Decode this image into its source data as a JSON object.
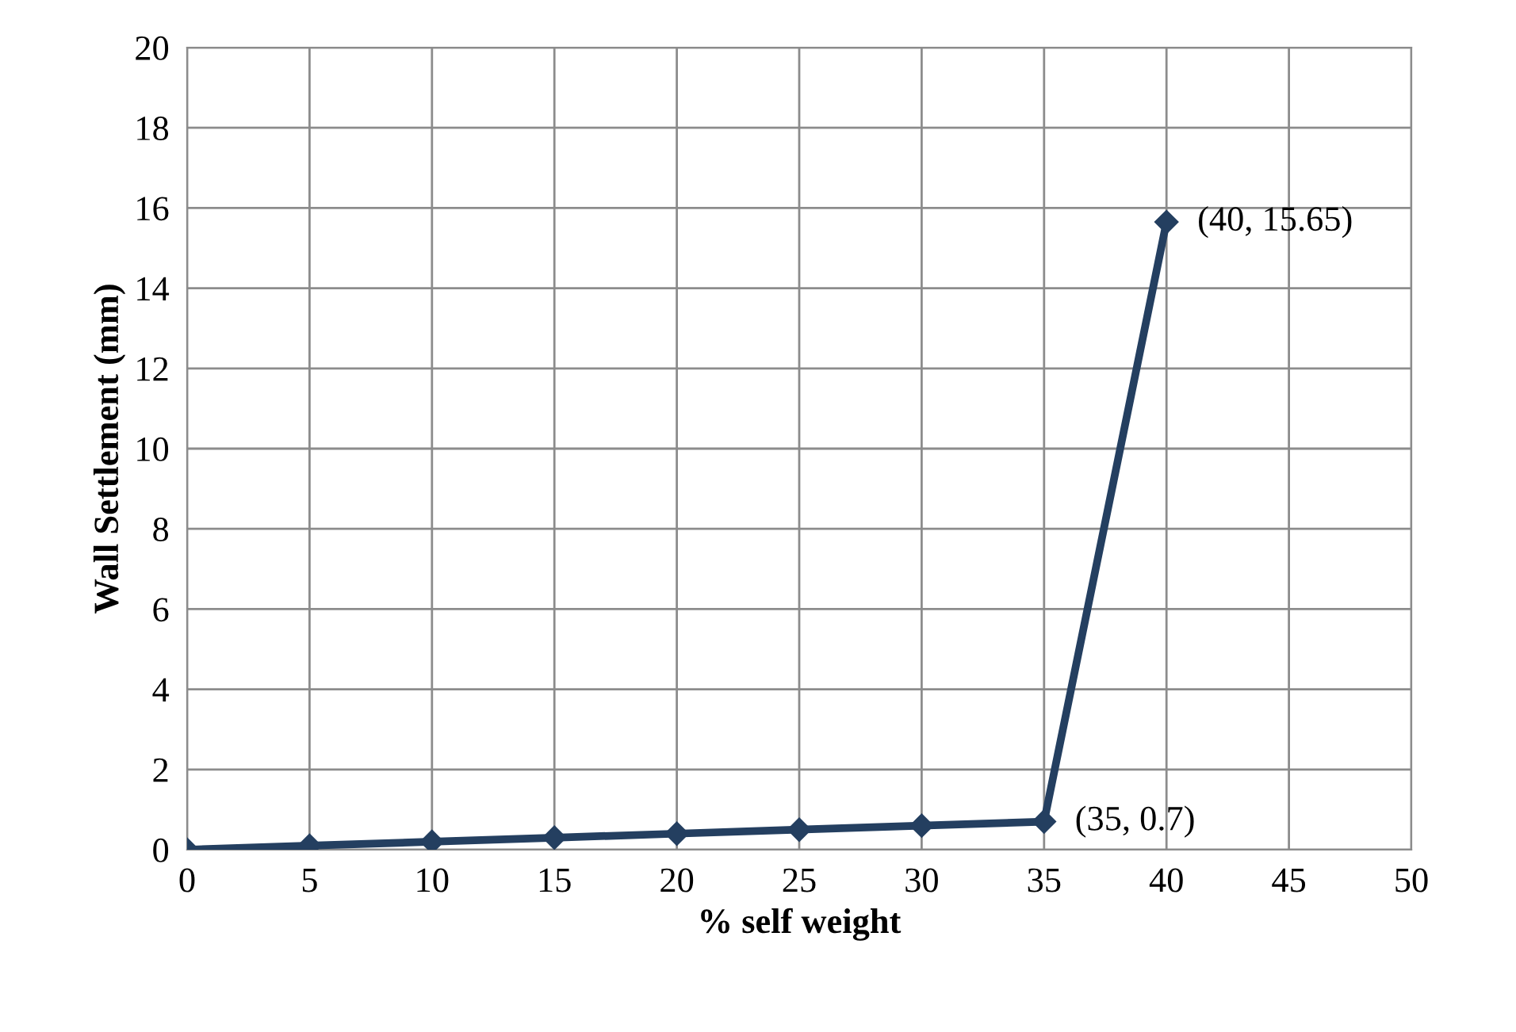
{
  "chart_data": {
    "type": "line",
    "xlabel": "% self weight",
    "ylabel": "Wall Settlement (mm)",
    "x": [
      0,
      5,
      10,
      15,
      20,
      25,
      30,
      35,
      40
    ],
    "series": [
      {
        "color": "#243f60",
        "values": [
          0,
          0.1,
          0.2,
          0.3,
          0.4,
          0.5,
          0.6,
          0.7,
          15.65
        ]
      }
    ],
    "xlim": [
      0,
      50
    ],
    "xticks": [
      0,
      5,
      10,
      15,
      20,
      25,
      30,
      35,
      40,
      45,
      50
    ],
    "ylim": [
      0,
      20
    ],
    "yticks": [
      0,
      2,
      4,
      6,
      8,
      10,
      12,
      14,
      16,
      18,
      20
    ],
    "grid": true,
    "marker": "diamond",
    "line_style": "solid",
    "annotations": [
      {
        "text": "(35, 0.7)",
        "x": 35,
        "y": 0.7
      },
      {
        "text": "(40, 15.65)",
        "x": 40,
        "y": 15.65
      }
    ]
  }
}
